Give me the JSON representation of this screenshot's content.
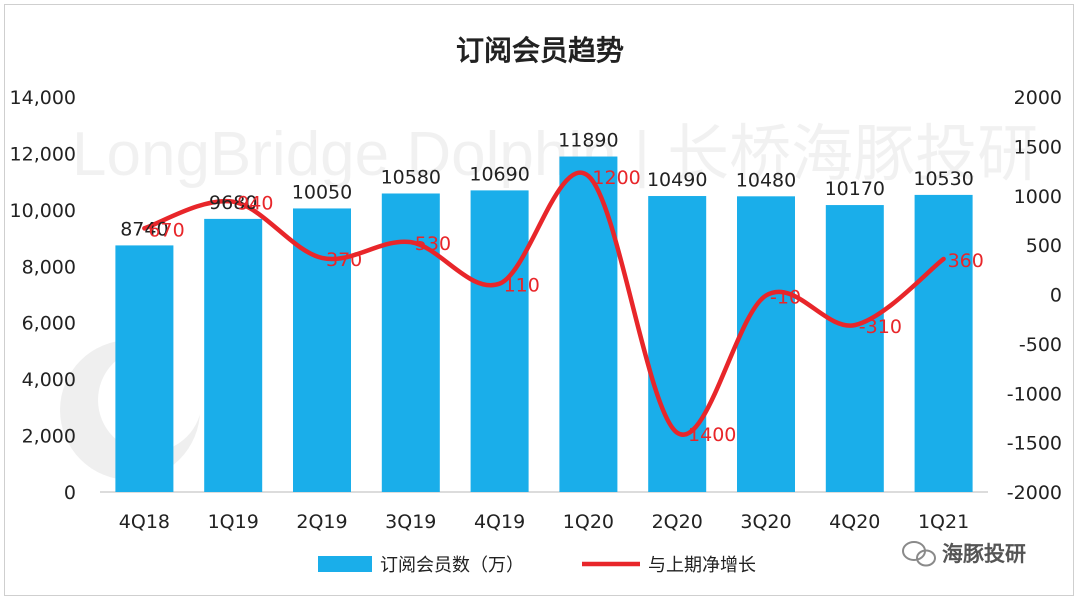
{
  "chart_data": {
    "type": "bar+line",
    "title": "订阅会员趋势",
    "categories": [
      "4Q18",
      "1Q19",
      "2Q19",
      "3Q19",
      "4Q19",
      "1Q20",
      "2Q20",
      "3Q20",
      "4Q20",
      "1Q21"
    ],
    "series": [
      {
        "name": "订阅会员数（万）",
        "type": "bar",
        "axis": "left",
        "color": "#1AAEEA",
        "values": [
          8740,
          9680,
          10050,
          10580,
          10690,
          11890,
          10490,
          10480,
          10170,
          10530
        ],
        "labels": [
          "8740",
          "9680",
          "10050",
          "10580",
          "10690",
          "11890",
          "10490",
          "10480",
          "10170",
          "10530"
        ]
      },
      {
        "name": "与上期净增长",
        "type": "line",
        "axis": "right",
        "color": "#E8262A",
        "values": [
          670,
          940,
          370,
          530,
          110,
          1200,
          -1400,
          -10,
          -310,
          360
        ],
        "labels": [
          "670",
          "940",
          "370",
          "530",
          "110",
          "1200",
          "-1400",
          "-10",
          "-310",
          "360"
        ]
      }
    ],
    "y_left": {
      "min": 0,
      "max": 14000,
      "ticks": [
        "0",
        "2,000",
        "4,000",
        "6,000",
        "8,000",
        "10,000",
        "12,000",
        "14,000"
      ]
    },
    "y_right": {
      "min": -2000,
      "max": 2000,
      "ticks": [
        "-2000",
        "-1500",
        "-1000",
        "-500",
        "0",
        "500",
        "1000",
        "1500",
        "2000"
      ]
    },
    "legend_position": "bottom",
    "grid": false
  },
  "watermark": {
    "text": "LongBridge Dolphin | 长桥海豚投研"
  },
  "brand": {
    "label": "海豚投研"
  },
  "colors": {
    "bar": "#1AAEEA",
    "line": "#E8262A",
    "axis": "#d0d0d0",
    "text": "#222222"
  }
}
